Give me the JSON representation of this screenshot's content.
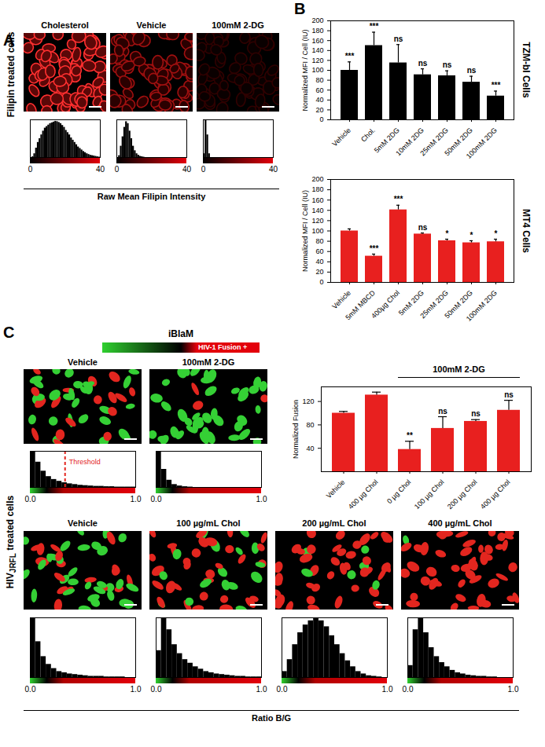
{
  "figure": {
    "panel_labels": [
      "A",
      "B",
      "C"
    ],
    "row_labels": [
      {
        "text": "Filipin treated cells"
      },
      {
        "text": "HIV",
        "subscript": "JRFL",
        "after": " treated cells"
      }
    ],
    "axis_titles": [
      "Raw Mean Filipin Intensity",
      "Ratio B/G"
    ],
    "colorbar": {
      "title": "iBlaM",
      "label": "HIV-1 Fusion +"
    }
  },
  "chart_data": [
    {
      "type": "histogram",
      "title": "Cholesterol",
      "color": "#000000",
      "bins": [
        0,
        1,
        2,
        3,
        4,
        5,
        6,
        7,
        8,
        9,
        10,
        11,
        12,
        13,
        14,
        15,
        16,
        17,
        18,
        19,
        20,
        21,
        22,
        23,
        24,
        25,
        26,
        27,
        28,
        29,
        30,
        31,
        32,
        33,
        34,
        35,
        36,
        37,
        38,
        39,
        40
      ],
      "counts": [
        0,
        2,
        10,
        25,
        40,
        50,
        60,
        70,
        78,
        82,
        86,
        90,
        92,
        94,
        96,
        95,
        93,
        90,
        85,
        80,
        72,
        66,
        60,
        52,
        46,
        40,
        34,
        28,
        24,
        20,
        16,
        13,
        10,
        8,
        6,
        5,
        4,
        3,
        2,
        1
      ],
      "xlim": [
        0,
        40
      ],
      "xticks": [
        0,
        40
      ],
      "ylim": [
        0,
        100
      ],
      "tick_labels": "x"
    },
    {
      "type": "histogram",
      "title": "Vehicle",
      "color": "#000000",
      "bins": [
        0,
        1,
        2,
        3,
        4,
        5,
        6,
        7,
        8,
        9,
        10,
        11,
        12,
        13,
        14,
        15,
        16,
        17,
        18,
        19,
        20,
        21,
        22,
        23,
        24,
        25,
        26,
        27,
        28,
        29,
        30,
        31,
        32,
        33,
        34,
        35,
        36,
        37,
        38,
        39,
        40
      ],
      "counts": [
        0,
        5,
        30,
        55,
        80,
        95,
        90,
        70,
        50,
        30,
        18,
        10,
        6,
        3,
        2,
        1,
        0,
        0,
        0,
        0,
        0,
        0,
        0,
        0,
        0,
        0,
        0,
        0,
        0,
        0,
        0,
        0,
        0,
        0,
        0,
        0,
        0,
        0,
        0,
        0
      ],
      "xlim": [
        0,
        40
      ],
      "xticks": [
        0,
        40
      ],
      "ylim": [
        0,
        100
      ],
      "tick_labels": "x"
    },
    {
      "type": "histogram",
      "title": "100mM 2-DG",
      "color": "#000000",
      "bins": [
        0,
        1,
        2,
        3,
        4,
        5,
        6,
        7,
        8,
        9,
        10,
        11,
        12,
        13,
        14,
        15,
        16,
        17,
        18,
        19,
        20,
        21,
        22,
        23,
        24,
        25,
        26,
        27,
        28,
        29,
        30,
        31,
        32,
        33,
        34,
        35,
        36,
        37,
        38,
        39,
        40
      ],
      "counts": [
        10,
        100,
        60,
        10,
        0,
        0,
        0,
        0,
        0,
        0,
        0,
        0,
        0,
        0,
        0,
        0,
        0,
        0,
        0,
        0,
        0,
        0,
        0,
        0,
        0,
        0,
        0,
        0,
        0,
        0,
        0,
        0,
        0,
        0,
        0,
        0,
        0,
        0,
        0,
        0
      ],
      "xlim": [
        0,
        40
      ],
      "xticks": [
        0,
        40
      ],
      "ylim": [
        0,
        100
      ],
      "tick_labels": "x"
    },
    {
      "type": "bar",
      "title": "TZM-bl Cells",
      "color": "#000000",
      "categories": [
        "Vehicle",
        "Chol.",
        "5mM 2DG",
        "10mM 2DG",
        "25mM 2DG",
        "50mM 2DG",
        "100mM 2DG"
      ],
      "values": [
        100,
        150,
        115,
        91,
        89,
        76,
        48
      ],
      "errors": [
        17,
        27,
        37,
        12,
        10,
        12,
        10
      ],
      "significance": [
        "***",
        "***",
        "ns",
        "ns",
        "ns",
        "ns",
        "***"
      ],
      "y_label": "Normalized MFI / Cell (IU)",
      "ylim": [
        0,
        200
      ],
      "yticks": [
        0,
        20,
        40,
        60,
        80,
        100,
        120,
        140,
        160,
        180,
        200
      ]
    },
    {
      "type": "bar",
      "title": "MT4 Cells",
      "color": "#e8201f",
      "categories": [
        "Vehicle",
        "5mM MBCD",
        "400µg Chol",
        "5mM 2DG",
        "25mM 2DG",
        "50mM 2DG",
        "100mM 2DG"
      ],
      "values": [
        100,
        51,
        141,
        94,
        81,
        77,
        79
      ],
      "errors": [
        4,
        4,
        9,
        2,
        3,
        4,
        5
      ],
      "significance": [
        null,
        "***",
        "***",
        "ns",
        "*",
        "*",
        "*"
      ],
      "y_label": "Normalized MFI / Cell (IU)",
      "ylim": [
        0,
        200
      ],
      "yticks": [
        0,
        20,
        40,
        60,
        80,
        100,
        120,
        140,
        160,
        180,
        200
      ]
    },
    {
      "type": "histogram",
      "title": "Vehicle",
      "color": "#000000",
      "bins": [
        0,
        0.05,
        0.1,
        0.15,
        0.2,
        0.25,
        0.3,
        0.35,
        0.4,
        0.45,
        0.5,
        0.55,
        0.6,
        0.65,
        0.7,
        0.75,
        0.8,
        0.85,
        0.9,
        0.95,
        1
      ],
      "counts": [
        100,
        70,
        45,
        30,
        22,
        17,
        13,
        10,
        8,
        6,
        5,
        4,
        3,
        3,
        2,
        2,
        1,
        1,
        1,
        1
      ],
      "threshold": {
        "value": 0.33,
        "label": "Threshold"
      },
      "xlim": [
        0,
        1
      ],
      "xticks": [
        0,
        1
      ],
      "ylim": [
        0,
        100
      ],
      "tick_labels": "x"
    },
    {
      "type": "histogram",
      "title": "100mM 2-DG",
      "color": "#000000",
      "bins": [
        0,
        0.05,
        0.1,
        0.15,
        0.2,
        0.25,
        0.3,
        0.35,
        0.4,
        0.45,
        0.5,
        0.55,
        0.6,
        0.65,
        0.7,
        0.75,
        0.8,
        0.85,
        0.9,
        0.95,
        1
      ],
      "counts": [
        100,
        50,
        20,
        8,
        4,
        2,
        1,
        0,
        0,
        0,
        0,
        0,
        0,
        0,
        0,
        0,
        0,
        0,
        0,
        0
      ],
      "xlim": [
        0,
        1
      ],
      "xticks": [
        0,
        1
      ],
      "ylim": [
        0,
        100
      ],
      "tick_labels": "x"
    },
    {
      "type": "bar",
      "color": "#e8201f",
      "categories": [
        "Vehicle",
        "400 µg Chol",
        "0 µg Chol",
        "100 µg Chol",
        "200 µg Chol",
        "400 µg Chol"
      ],
      "values": [
        100,
        131,
        38,
        74,
        86,
        105
      ],
      "errors": [
        3,
        5,
        14,
        20,
        3,
        17
      ],
      "significance": [
        null,
        null,
        "**",
        "ns",
        "ns",
        "ns"
      ],
      "group": {
        "label": "100mM 2-DG",
        "first": 2,
        "last": 5
      },
      "y_label": "Normalized Fusion",
      "ylim": [
        0,
        145
      ],
      "yticks": [
        40,
        80,
        120
      ]
    },
    {
      "type": "histogram",
      "title": "Vehicle",
      "color": "#000000",
      "bins": [
        0,
        0.05,
        0.1,
        0.15,
        0.2,
        0.25,
        0.3,
        0.35,
        0.4,
        0.45,
        0.5,
        0.55,
        0.6,
        0.65,
        0.7,
        0.75,
        0.8,
        0.85,
        0.9,
        0.95,
        1
      ],
      "counts": [
        100,
        60,
        35,
        22,
        15,
        10,
        8,
        6,
        5,
        4,
        3,
        2,
        2,
        2,
        1,
        1,
        1,
        1,
        0,
        0
      ],
      "xlim": [
        0,
        1
      ],
      "xticks": [
        0,
        1
      ],
      "ylim": [
        0,
        100
      ],
      "tick_labels": "x"
    },
    {
      "type": "histogram",
      "title": "100 µg/mL Chol",
      "color": "#000000",
      "bins": [
        0,
        0.05,
        0.1,
        0.15,
        0.2,
        0.25,
        0.3,
        0.35,
        0.4,
        0.45,
        0.5,
        0.55,
        0.6,
        0.65,
        0.7,
        0.75,
        0.8,
        0.85,
        0.9,
        0.95,
        1
      ],
      "counts": [
        45,
        100,
        80,
        55,
        40,
        30,
        24,
        18,
        14,
        10,
        8,
        6,
        5,
        4,
        3,
        2,
        2,
        1,
        1,
        1
      ],
      "xlim": [
        0,
        1
      ],
      "xticks": [
        0,
        1
      ],
      "ylim": [
        0,
        100
      ],
      "tick_labels": "x"
    },
    {
      "type": "histogram",
      "title": "200 µg/mL Chol",
      "color": "#000000",
      "bins": [
        0,
        0.05,
        0.1,
        0.15,
        0.2,
        0.25,
        0.3,
        0.35,
        0.4,
        0.45,
        0.5,
        0.55,
        0.6,
        0.65,
        0.7,
        0.75,
        0.8,
        0.85,
        0.9,
        0.95,
        1
      ],
      "counts": [
        10,
        30,
        55,
        75,
        88,
        95,
        100,
        95,
        85,
        70,
        55,
        40,
        28,
        18,
        10,
        6,
        3,
        2,
        1,
        0
      ],
      "xlim": [
        0,
        1
      ],
      "xticks": [
        0,
        1
      ],
      "ylim": [
        0,
        100
      ],
      "tick_labels": "x"
    },
    {
      "type": "histogram",
      "title": "400 µg/mL Chol",
      "color": "#000000",
      "bins": [
        0,
        0.05,
        0.1,
        0.15,
        0.2,
        0.25,
        0.3,
        0.35,
        0.4,
        0.45,
        0.5,
        0.55,
        0.6,
        0.65,
        0.7,
        0.75,
        0.8,
        0.85,
        0.9,
        0.95,
        1
      ],
      "counts": [
        20,
        80,
        100,
        75,
        50,
        35,
        25,
        18,
        12,
        8,
        6,
        4,
        3,
        2,
        2,
        1,
        1,
        0,
        0,
        0
      ],
      "xlim": [
        0,
        1
      ],
      "xticks": [
        0,
        1
      ],
      "ylim": [
        0,
        100
      ],
      "tick_labels": "x"
    }
  ]
}
